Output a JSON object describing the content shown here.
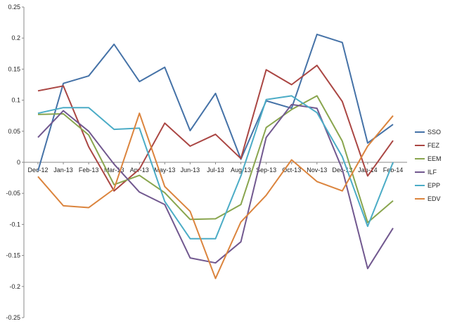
{
  "chart_data": {
    "type": "line",
    "categories": [
      "Dec-12",
      "Jan-13",
      "Feb-13",
      "Mar-13",
      "Apr-13",
      "May-13",
      "Jun-13",
      "Jul-13",
      "Aug-13",
      "Sep-13",
      "Oct-13",
      "Nov-13",
      "Dec-13",
      "Jan-14",
      "Feb-14"
    ],
    "ylim": [
      -0.25,
      0.25
    ],
    "yticks": [
      "0.25",
      "0.2",
      "0.15",
      "0.1",
      "0.05",
      "0",
      "-0.05",
      "-0.1",
      "-0.15",
      "-0.2",
      "-0.25"
    ],
    "grid": false,
    "legend_position": "right",
    "series": [
      {
        "name": "SSO",
        "color": "#4572A7",
        "values": [
          -0.014,
          0.127,
          0.139,
          0.19,
          0.13,
          0.153,
          0.051,
          0.111,
          0.005,
          0.099,
          0.087,
          0.206,
          0.193,
          0.031,
          0.061
        ]
      },
      {
        "name": "FEZ",
        "color": "#AA4643",
        "values": [
          0.115,
          0.123,
          0.025,
          -0.046,
          -0.011,
          0.063,
          0.026,
          0.045,
          0.006,
          0.149,
          0.125,
          0.156,
          0.098,
          -0.022,
          0.035
        ]
      },
      {
        "name": "EEM",
        "color": "#89A54E",
        "values": [
          0.077,
          0.078,
          0.044,
          -0.036,
          -0.021,
          -0.049,
          -0.092,
          -0.091,
          -0.068,
          0.056,
          0.085,
          0.107,
          0.034,
          -0.097,
          -0.062
        ]
      },
      {
        "name": "ILF",
        "color": "#71588F",
        "values": [
          0.04,
          0.083,
          0.05,
          -0.003,
          -0.048,
          -0.068,
          -0.154,
          -0.162,
          -0.128,
          0.04,
          0.093,
          0.087,
          -0.011,
          -0.171,
          -0.106
        ]
      },
      {
        "name": "EPP",
        "color": "#4BACC6",
        "values": [
          0.079,
          0.088,
          0.088,
          0.053,
          0.055,
          -0.063,
          -0.123,
          -0.123,
          -0.022,
          0.101,
          0.107,
          0.08,
          0.009,
          -0.103,
          0.0
        ]
      },
      {
        "name": "EDV",
        "color": "#DB843D",
        "values": [
          -0.023,
          -0.07,
          -0.073,
          -0.043,
          0.079,
          -0.039,
          -0.079,
          -0.187,
          -0.096,
          -0.053,
          0.004,
          -0.031,
          -0.046,
          0.026,
          0.075
        ]
      }
    ]
  }
}
